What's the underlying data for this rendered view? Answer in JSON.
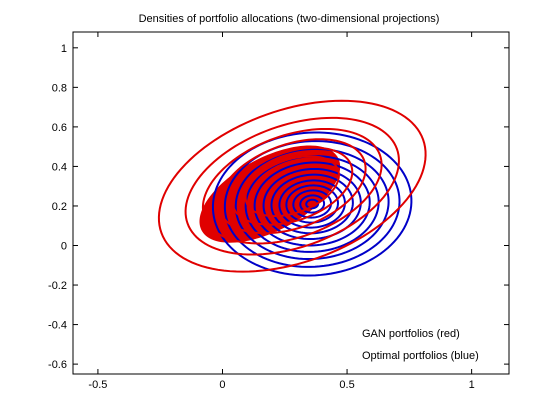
{
  "chart_data": {
    "type": "contour",
    "title": "Densities of portfolio allocations (two-dimensional projections)",
    "xlabel": "",
    "ylabel": "",
    "xlim": [
      -0.6,
      1.15
    ],
    "ylim": [
      -0.65,
      1.08
    ],
    "x_ticks": [
      -0.5,
      0,
      0.5,
      1
    ],
    "x_tick_labels": [
      "-0.5",
      "0",
      "0.5",
      "1"
    ],
    "y_ticks": [
      -0.6,
      -0.4,
      -0.2,
      0,
      0.2,
      0.4,
      0.6,
      0.8,
      1
    ],
    "y_tick_labels": [
      "-0.6",
      "-0.4",
      "-0.2",
      "0",
      "0.2",
      "0.4",
      "0.6",
      "0.8",
      "1"
    ],
    "grid": false,
    "legend": {
      "placement": "bottom-right",
      "entries": [
        "GAN portfolios (red)",
        "Optimal portfolios (blue)"
      ]
    },
    "series": [
      {
        "color": "#0000c8",
        "center": [
          0.36,
          0.21
        ],
        "semi_axis_x": 0.4,
        "semi_axis_y": 0.36,
        "rotation_deg": 12,
        "levels": [
          1.0,
          0.88,
          0.77,
          0.67,
          0.58,
          0.49,
          0.41,
          0.33,
          0.26,
          0.19,
          0.12,
          0.06
        ]
      },
      {
        "color": "#e00000",
        "center": [
          0.28,
          0.3
        ],
        "semi_axis_x": 0.58,
        "semi_axis_y": 0.37,
        "rotation_deg": 30,
        "levels": [
          1.0,
          0.8,
          0.67,
          0.55,
          0.45,
          0.35
        ],
        "filled_core": {
          "center": [
            0.19,
            0.26
          ],
          "semi_axis_x": 0.33,
          "semi_axis_y": 0.17,
          "rotation_deg": 38
        }
      }
    ]
  }
}
